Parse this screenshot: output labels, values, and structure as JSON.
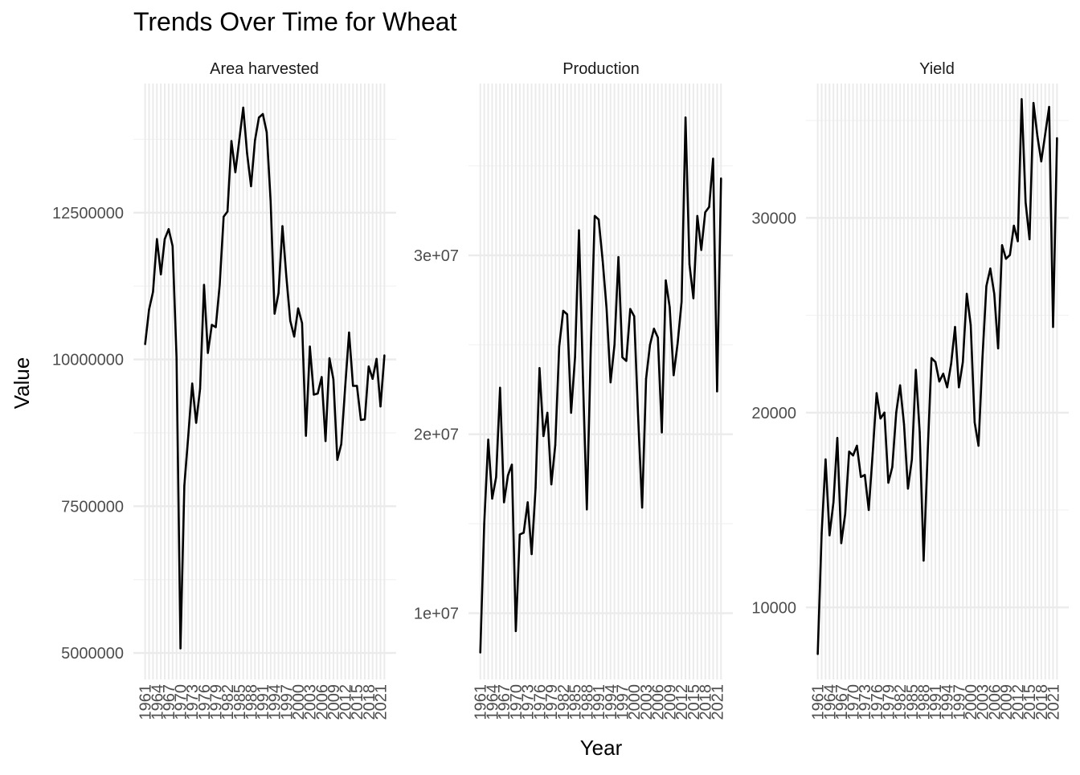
{
  "chart_title": "Trends Over Time for Wheat",
  "x_axis_label": "Year",
  "y_axis_label": "Value",
  "chart_data": [
    {
      "type": "line",
      "title": "Area harvested",
      "xlabel": "Year",
      "ylabel": "Value",
      "grid": true,
      "line_color": "#000000",
      "ylim": [
        4550000,
        14700000
      ],
      "y_ticks": [
        5000000,
        7500000,
        10000000,
        12500000
      ],
      "y_tick_labels": [
        "5000000",
        "7500000",
        "10000000",
        "12500000"
      ],
      "x_tick_labels": [
        "1961",
        "1964",
        "1967",
        "1970",
        "1973",
        "1976",
        "1979",
        "1982",
        "1985",
        "1988",
        "1991",
        "1994",
        "1997",
        "2000",
        "2003",
        "2006",
        "2009",
        "2012",
        "2015",
        "2018",
        "2021"
      ],
      "x": [
        1961,
        1962,
        1963,
        1964,
        1965,
        1966,
        1967,
        1968,
        1969,
        1970,
        1971,
        1972,
        1973,
        1974,
        1975,
        1976,
        1977,
        1978,
        1979,
        1980,
        1981,
        1982,
        1983,
        1984,
        1985,
        1986,
        1987,
        1988,
        1989,
        1990,
        1991,
        1992,
        1993,
        1994,
        1995,
        1996,
        1997,
        1998,
        1999,
        2000,
        2001,
        2002,
        2003,
        2004,
        2005,
        2006,
        2007,
        2008,
        2009,
        2010,
        2011,
        2012,
        2013,
        2014,
        2015,
        2016,
        2017,
        2018,
        2019,
        2020,
        2021,
        2022
      ],
      "values": [
        10260000,
        10850000,
        11150000,
        12050000,
        11450000,
        12050000,
        12220000,
        11930000,
        10030000,
        5080000,
        7850000,
        8700000,
        9590000,
        8920000,
        9500000,
        11270000,
        10110000,
        10590000,
        10550000,
        11270000,
        12430000,
        12520000,
        13720000,
        13190000,
        13740000,
        14290000,
        13510000,
        12950000,
        13730000,
        14120000,
        14180000,
        13870000,
        12690000,
        10780000,
        11130000,
        12270000,
        11420000,
        10660000,
        10390000,
        10870000,
        10620000,
        8700000,
        10220000,
        9400000,
        9420000,
        9700000,
        8610000,
        10020000,
        9660000,
        8290000,
        8560000,
        9540000,
        10460000,
        9550000,
        9550000,
        8970000,
        8980000,
        9880000,
        9670000,
        10010000,
        9200000,
        10070000
      ]
    },
    {
      "type": "line",
      "title": "Production",
      "xlabel": "Year",
      "ylabel": "Value",
      "grid": true,
      "line_color": "#000000",
      "ylim": [
        6300000,
        39600000
      ],
      "y_ticks": [
        10000000,
        20000000,
        30000000
      ],
      "y_tick_labels": [
        "1e+07",
        "2e+07",
        "3e+07"
      ],
      "x_tick_labels": [
        "1961",
        "1964",
        "1967",
        "1970",
        "1973",
        "1976",
        "1979",
        "1982",
        "1985",
        "1988",
        "1991",
        "1994",
        "1997",
        "2000",
        "2003",
        "2006",
        "2009",
        "2012",
        "2015",
        "2018",
        "2021"
      ],
      "x": [
        1961,
        1962,
        1963,
        1964,
        1965,
        1966,
        1967,
        1968,
        1969,
        1970,
        1971,
        1972,
        1973,
        1974,
        1975,
        1976,
        1977,
        1978,
        1979,
        1980,
        1981,
        1982,
        1983,
        1984,
        1985,
        1986,
        1987,
        1988,
        1989,
        1990,
        1991,
        1992,
        1993,
        1994,
        1995,
        1996,
        1997,
        1998,
        1999,
        2000,
        2001,
        2002,
        2003,
        2004,
        2005,
        2006,
        2007,
        2008,
        2009,
        2010,
        2011,
        2012,
        2013,
        2014,
        2015,
        2016,
        2017,
        2018,
        2019,
        2020,
        2021,
        2022
      ],
      "values": [
        7800000,
        15000000,
        19700000,
        16400000,
        17600000,
        22600000,
        16200000,
        17700000,
        18300000,
        9000000,
        14400000,
        14500000,
        16200000,
        13300000,
        17000000,
        23700000,
        19900000,
        21200000,
        17200000,
        19400000,
        24900000,
        26900000,
        26700000,
        21200000,
        24300000,
        31400000,
        23200000,
        15800000,
        24800000,
        32200000,
        32000000,
        29700000,
        27000000,
        22900000,
        25000000,
        29900000,
        24300000,
        24100000,
        27000000,
        26600000,
        21000000,
        15900000,
        23100000,
        25000000,
        25900000,
        25400000,
        20100000,
        28600000,
        27100000,
        23300000,
        25100000,
        27400000,
        37700000,
        29500000,
        27600000,
        32200000,
        30300000,
        32400000,
        32700000,
        35400000,
        22400000,
        34300000
      ]
    },
    {
      "type": "line",
      "title": "Yield",
      "xlabel": "Year",
      "ylabel": "Value",
      "grid": true,
      "line_color": "#000000",
      "ylim": [
        6300,
        36900
      ],
      "y_ticks": [
        10000,
        20000,
        30000
      ],
      "y_tick_labels": [
        "10000",
        "20000",
        "30000"
      ],
      "x_tick_labels": [
        "1961",
        "1964",
        "1967",
        "1970",
        "1973",
        "1976",
        "1979",
        "1982",
        "1985",
        "1988",
        "1991",
        "1994",
        "1997",
        "2000",
        "2003",
        "2006",
        "2009",
        "2012",
        "2015",
        "2018",
        "2021"
      ],
      "x": [
        1961,
        1962,
        1963,
        1964,
        1965,
        1966,
        1967,
        1968,
        1969,
        1970,
        1971,
        1972,
        1973,
        1974,
        1975,
        1976,
        1977,
        1978,
        1979,
        1980,
        1981,
        1982,
        1983,
        1984,
        1985,
        1986,
        1987,
        1988,
        1989,
        1990,
        1991,
        1992,
        1993,
        1994,
        1995,
        1996,
        1997,
        1998,
        1999,
        2000,
        2001,
        2002,
        2003,
        2004,
        2005,
        2006,
        2007,
        2008,
        2009,
        2010,
        2011,
        2012,
        2013,
        2014,
        2015,
        2016,
        2017,
        2018,
        2019,
        2020,
        2021,
        2022
      ],
      "values": [
        7600,
        13800,
        17600,
        13700,
        15400,
        18700,
        13300,
        14800,
        18000,
        17800,
        18300,
        16700,
        16800,
        15000,
        17900,
        21000,
        19700,
        20000,
        16400,
        17200,
        20000,
        21400,
        19400,
        16100,
        17600,
        22200,
        19000,
        12400,
        17800,
        22800,
        22600,
        21600,
        22000,
        21300,
        22500,
        24400,
        21300,
        22600,
        26100,
        24500,
        19500,
        18300,
        22800,
        26500,
        27400,
        26100,
        23300,
        28600,
        27900,
        28100,
        29600,
        28800,
        36100,
        30800,
        28900,
        35900,
        34200,
        32900,
        34300,
        35700,
        24400,
        34100
      ]
    }
  ]
}
